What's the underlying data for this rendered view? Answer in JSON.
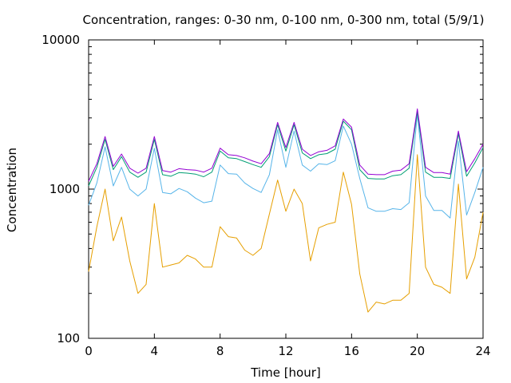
{
  "chart_data": {
    "type": "line",
    "title": "Concentration, ranges: 0-30 nm, 0-100 nm, 0-300 nm, total (5/9/1)",
    "xlabel": "Time [hour]",
    "ylabel": "Concentration",
    "xlim": [
      0,
      24
    ],
    "ylim": [
      100,
      10000
    ],
    "yscale": "log",
    "grid": false,
    "legend": "none",
    "x_ticks": [
      0,
      4,
      8,
      12,
      16,
      20,
      24
    ],
    "x_tick_labels": [
      "0",
      "4",
      "8",
      "12",
      "16",
      "20",
      "24"
    ],
    "y_ticks": [
      100,
      1000,
      10000
    ],
    "y_tick_labels": [
      "100",
      "1000",
      "10000"
    ],
    "x": [
      0,
      0.5,
      1,
      1.5,
      2,
      2.5,
      3,
      3.5,
      4,
      4.5,
      5,
      5.5,
      6,
      6.5,
      7,
      7.5,
      8,
      8.5,
      9,
      9.5,
      10,
      10.5,
      11,
      11.5,
      12,
      12.5,
      13,
      13.5,
      14,
      14.5,
      15,
      15.5,
      16,
      16.5,
      17,
      17.5,
      18,
      18.5,
      19,
      19.5,
      20,
      20.5,
      21,
      21.5,
      22,
      22.5,
      23,
      23.5,
      24
    ],
    "series": [
      {
        "color": "#E69F00",
        "values": [
          280,
          560,
          1000,
          450,
          650,
          330,
          200,
          230,
          800,
          300,
          310,
          320,
          360,
          340,
          300,
          300,
          560,
          480,
          470,
          390,
          360,
          400,
          680,
          1150,
          710,
          1000,
          800,
          330,
          550,
          580,
          600,
          1300,
          790,
          270,
          150,
          175,
          170,
          180,
          180,
          200,
          1700,
          300,
          230,
          220,
          200,
          1080,
          250,
          350,
          700
        ]
      },
      {
        "color": "#56B4E9",
        "values": [
          780,
          1100,
          1920,
          1050,
          1400,
          1000,
          900,
          1000,
          1880,
          950,
          930,
          1010,
          960,
          870,
          810,
          830,
          1450,
          1270,
          1260,
          1100,
          1010,
          950,
          1250,
          2500,
          1400,
          2450,
          1450,
          1320,
          1480,
          1460,
          1550,
          2650,
          2000,
          1180,
          750,
          710,
          710,
          740,
          730,
          810,
          3200,
          900,
          720,
          720,
          640,
          2100,
          670,
          950,
          1400
        ]
      },
      {
        "color": "#009E73",
        "values": [
          1050,
          1400,
          2150,
          1350,
          1650,
          1300,
          1200,
          1300,
          2150,
          1250,
          1220,
          1290,
          1280,
          1260,
          1210,
          1300,
          1800,
          1620,
          1600,
          1530,
          1460,
          1400,
          1650,
          2700,
          1800,
          2700,
          1750,
          1600,
          1700,
          1730,
          1850,
          2850,
          2500,
          1350,
          1180,
          1170,
          1170,
          1230,
          1250,
          1380,
          3300,
          1300,
          1200,
          1200,
          1180,
          2350,
          1220,
          1500,
          1900
        ]
      },
      {
        "color": "#9400D3",
        "values": [
          1130,
          1480,
          2250,
          1420,
          1720,
          1380,
          1280,
          1380,
          2250,
          1330,
          1300,
          1370,
          1350,
          1340,
          1300,
          1380,
          1880,
          1700,
          1680,
          1620,
          1540,
          1480,
          1730,
          2800,
          1900,
          2800,
          1850,
          1680,
          1780,
          1820,
          1950,
          2950,
          2600,
          1450,
          1260,
          1250,
          1250,
          1320,
          1340,
          1480,
          3450,
          1400,
          1290,
          1290,
          1260,
          2450,
          1310,
          1600,
          2000
        ]
      }
    ]
  }
}
